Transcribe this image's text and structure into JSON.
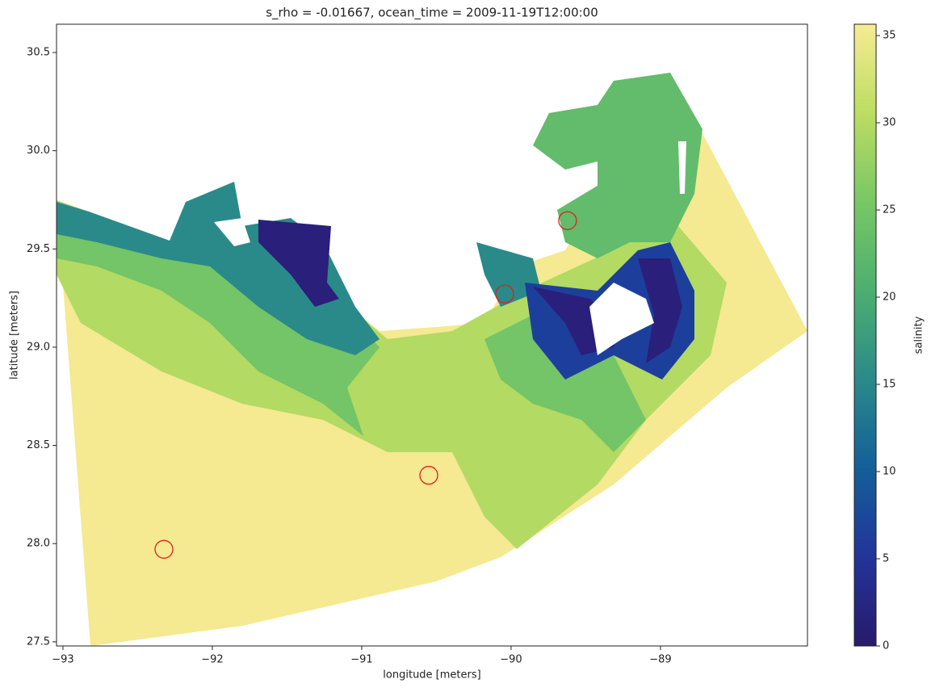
{
  "chart_data": {
    "type": "heatmap",
    "title": "s_rho = -0.01667, ocean_time = 2009-11-19T12:00:00",
    "xlabel": "longitude [meters]",
    "ylabel": "latitude [meters]",
    "xlim": [
      -93.043,
      -88.016
    ],
    "ylim": [
      27.479,
      30.644
    ],
    "xticks": [
      {
        "value": -93,
        "label": "−93"
      },
      {
        "value": -92,
        "label": "−92"
      },
      {
        "value": -91,
        "label": "−91"
      },
      {
        "value": -90,
        "label": "−90"
      },
      {
        "value": -89,
        "label": "−89"
      }
    ],
    "yticks": [
      27.5,
      {
        "value": 28,
        "label": "28.0"
      },
      28.5,
      {
        "value": 29,
        "label": "29.0"
      },
      29.5,
      {
        "value": 30,
        "label": "30.0"
      },
      30.5
    ],
    "colorbar": {
      "label": "salinity",
      "lim": [
        0,
        35.65
      ],
      "ticks": [
        0,
        5,
        10,
        15,
        20,
        25,
        30,
        35
      ],
      "colors": [
        "#271a6b",
        "#23349a",
        "#135f99",
        "#2a8a8a",
        "#4caf6f",
        "#78c765",
        "#bcdd62",
        "#f6ec93"
      ]
    },
    "markers": {
      "x": [
        -92.324,
        -90.551,
        -90.043,
        -89.622
      ],
      "y": [
        27.971,
        28.348,
        29.271,
        29.644
      ],
      "color": "#e0201b"
    }
  }
}
